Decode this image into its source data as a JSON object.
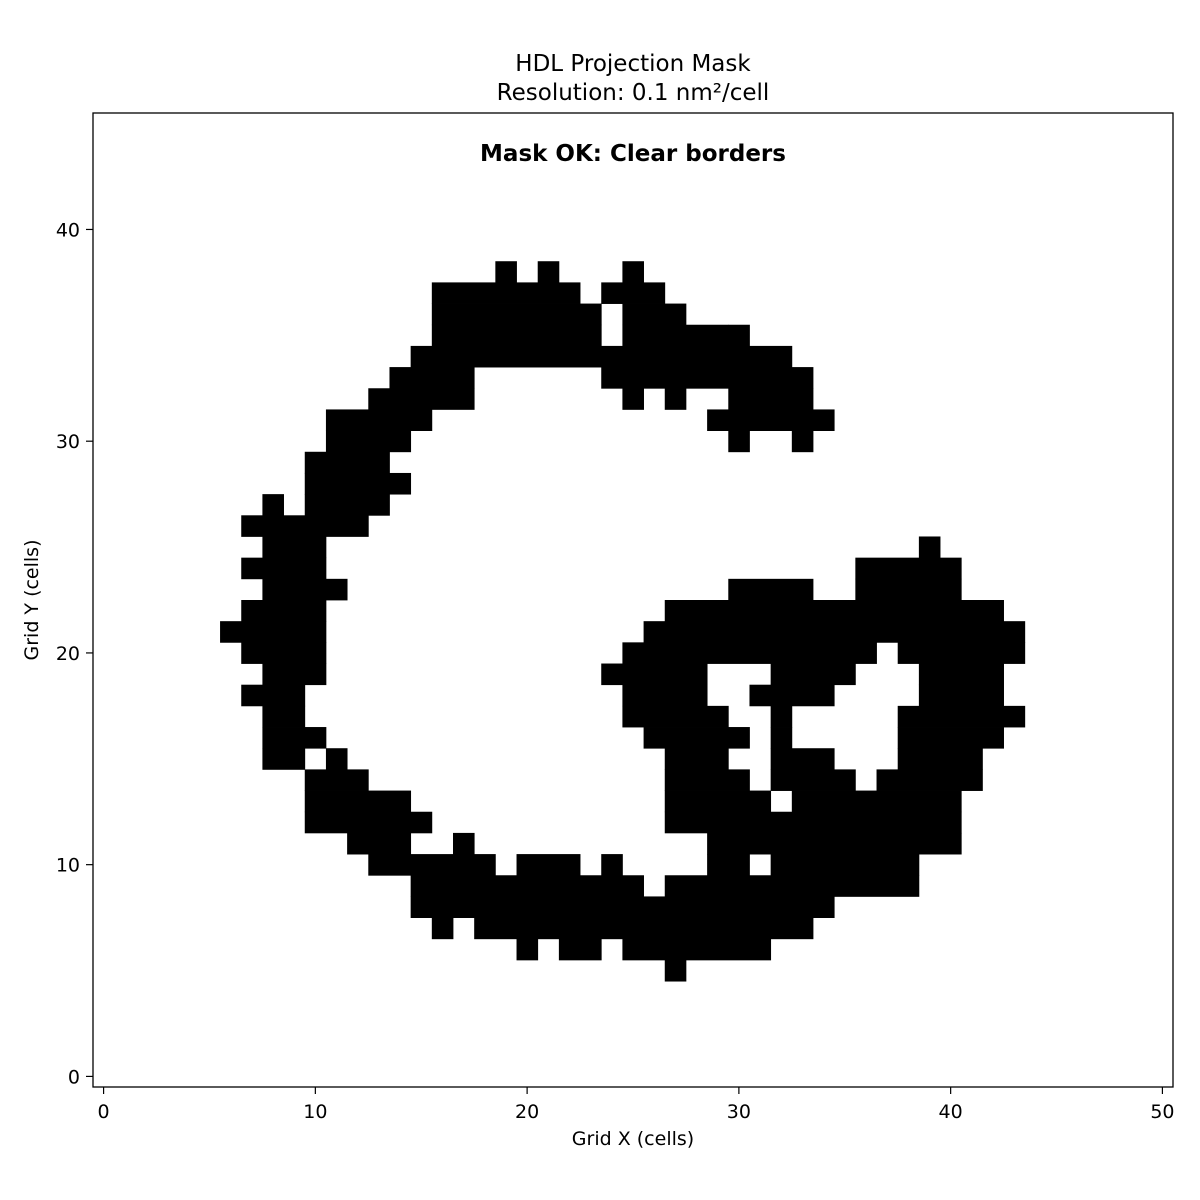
{
  "chart_data": {
    "type": "heatmap",
    "title": "HDL Projection Mask",
    "subtitle": "Resolution: 0.1 nm²/cell",
    "annotation": "Mask OK: Clear borders",
    "annotation_color": "#008000",
    "xlabel": "Grid X (cells)",
    "ylabel": "Grid Y (cells)",
    "xlim": [
      -0.5,
      50.5
    ],
    "ylim": [
      -0.5,
      45.5
    ],
    "xticks": [
      0,
      10,
      20,
      30,
      40,
      50
    ],
    "yticks": [
      0,
      10,
      20,
      30,
      40
    ],
    "grid": false,
    "filled_color": "#000000",
    "empty_color": "#ffffff",
    "cell_size": "1 cell per grid unit",
    "filled_runs_by_row": {
      "38": [
        [
          19,
          19
        ],
        [
          21,
          21
        ],
        [
          25,
          25
        ]
      ],
      "37": [
        [
          16,
          22
        ],
        [
          24,
          26
        ]
      ],
      "36": [
        [
          16,
          23
        ],
        [
          25,
          27
        ]
      ],
      "35": [
        [
          16,
          23
        ],
        [
          25,
          29
        ],
        [
          30,
          30
        ]
      ],
      "34": [
        [
          15,
          23
        ],
        [
          24,
          32
        ]
      ],
      "33": [
        [
          14,
          17
        ],
        [
          24,
          33
        ]
      ],
      "32": [
        [
          13,
          17
        ],
        [
          25,
          25
        ],
        [
          27,
          27
        ],
        [
          30,
          33
        ]
      ],
      "31": [
        [
          11,
          15
        ],
        [
          29,
          34
        ]
      ],
      "30": [
        [
          11,
          14
        ],
        [
          30,
          30
        ],
        [
          33,
          33
        ]
      ],
      "29": [
        [
          10,
          13
        ]
      ],
      "28": [
        [
          10,
          14
        ]
      ],
      "27": [
        [
          8,
          8
        ],
        [
          10,
          13
        ]
      ],
      "26": [
        [
          7,
          12
        ]
      ],
      "25": [
        [
          8,
          10
        ],
        [
          39,
          39
        ]
      ],
      "24": [
        [
          7,
          10
        ],
        [
          36,
          40
        ]
      ],
      "23": [
        [
          8,
          11
        ],
        [
          30,
          33
        ],
        [
          36,
          40
        ]
      ],
      "22": [
        [
          7,
          10
        ],
        [
          27,
          42
        ]
      ],
      "21": [
        [
          6,
          10
        ],
        [
          26,
          43
        ]
      ],
      "20": [
        [
          7,
          10
        ],
        [
          25,
          36
        ],
        [
          38,
          43
        ]
      ],
      "19": [
        [
          8,
          10
        ],
        [
          24,
          28
        ],
        [
          32,
          35
        ],
        [
          39,
          42
        ]
      ],
      "18": [
        [
          7,
          9
        ],
        [
          25,
          28
        ],
        [
          31,
          34
        ],
        [
          39,
          42
        ]
      ],
      "17": [
        [
          8,
          9
        ],
        [
          25,
          29
        ],
        [
          32,
          32
        ],
        [
          38,
          43
        ]
      ],
      "16": [
        [
          8,
          10
        ],
        [
          26,
          30
        ],
        [
          32,
          32
        ],
        [
          38,
          42
        ]
      ],
      "15": [
        [
          8,
          9
        ],
        [
          11,
          11
        ],
        [
          27,
          29
        ],
        [
          32,
          34
        ],
        [
          38,
          41
        ]
      ],
      "14": [
        [
          10,
          12
        ],
        [
          27,
          30
        ],
        [
          32,
          35
        ],
        [
          37,
          41
        ]
      ],
      "13": [
        [
          10,
          14
        ],
        [
          27,
          31
        ],
        [
          33,
          40
        ]
      ],
      "12": [
        [
          10,
          15
        ],
        [
          27,
          40
        ]
      ],
      "11": [
        [
          12,
          14
        ],
        [
          17,
          17
        ],
        [
          29,
          40
        ]
      ],
      "10": [
        [
          13,
          18
        ],
        [
          20,
          22
        ],
        [
          24,
          24
        ],
        [
          29,
          30
        ],
        [
          32,
          38
        ]
      ],
      "9": [
        [
          15,
          25
        ],
        [
          27,
          38
        ]
      ],
      "8": [
        [
          15,
          34
        ]
      ],
      "7": [
        [
          16,
          16
        ],
        [
          18,
          33
        ]
      ],
      "6": [
        [
          20,
          20
        ],
        [
          22,
          23
        ],
        [
          25,
          31
        ]
      ],
      "5": [
        [
          27,
          27
        ]
      ]
    }
  }
}
